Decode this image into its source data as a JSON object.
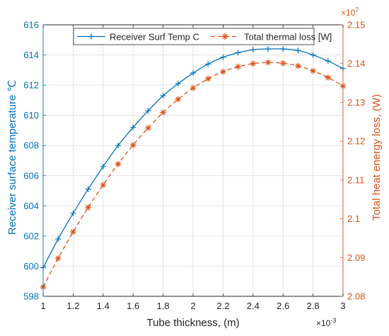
{
  "chart_data": {
    "type": "line",
    "title": "",
    "xlabel": "Tube thickness, (m)",
    "x_exponent_label": "×10",
    "x_exponent": "-3",
    "xlim": [
      1,
      3
    ],
    "xticks": [
      1,
      1.2,
      1.4,
      1.6,
      1.8,
      2,
      2.2,
      2.4,
      2.6,
      2.8,
      3
    ],
    "xtick_labels": [
      "1",
      "1.2",
      "1.4",
      "1.6",
      "1.8",
      "2",
      "2.2",
      "2.4",
      "2.6",
      "2.8",
      "3"
    ],
    "ylabel_left": "Receiver surface temperature ℃",
    "ylim_left": [
      598,
      616
    ],
    "yticks_left": [
      598,
      600,
      602,
      604,
      606,
      608,
      610,
      612,
      614,
      616
    ],
    "ytick_labels_left": [
      "598",
      "600",
      "602",
      "604",
      "606",
      "608",
      "610",
      "612",
      "614",
      "616"
    ],
    "ylabel_right": "Total heat energy loss, (W)",
    "y_right_exponent_label": "×10",
    "y_right_exponent": "7",
    "ylim_right": [
      2.08,
      2.15
    ],
    "yticks_right": [
      2.08,
      2.09,
      2.1,
      2.11,
      2.12,
      2.13,
      2.14,
      2.15
    ],
    "ytick_labels_right": [
      "2.08",
      "2.09",
      "2.1",
      "2.11",
      "2.12",
      "2.13",
      "2.14",
      "2.15"
    ],
    "grid": true,
    "legend_position": "top-center",
    "colors": {
      "left_axis": "#0072BD",
      "right_axis": "#D95319",
      "grid": "#dcdcdc",
      "frame": "#262626"
    },
    "x": [
      1,
      1.1,
      1.2,
      1.3,
      1.4,
      1.5,
      1.6,
      1.7,
      1.8,
      1.9,
      2,
      2.1,
      2.2,
      2.3,
      2.4,
      2.5,
      2.6,
      2.7,
      2.8,
      2.9,
      3
    ],
    "series": [
      {
        "name": "Receiver Surf Temp C",
        "axis": "left",
        "color": "#0072BD",
        "line_style": "solid",
        "marker": "plus",
        "values": [
          599.9,
          601.8,
          603.5,
          605.1,
          606.6,
          608.0,
          609.2,
          610.3,
          611.3,
          612.1,
          612.8,
          613.4,
          613.85,
          614.15,
          614.35,
          614.4,
          614.4,
          614.3,
          614.0,
          613.6,
          613.1
        ]
      },
      {
        "name": "Total thermal loss [W]",
        "axis": "right",
        "color": "#D95319",
        "line_style": "dashed",
        "marker": "asterisk",
        "values": [
          2.0824,
          2.0898,
          2.0966,
          2.1029,
          2.1087,
          2.1141,
          2.119,
          2.1234,
          2.1274,
          2.1308,
          2.1337,
          2.1361,
          2.1379,
          2.1392,
          2.14,
          2.1403,
          2.1401,
          2.1394,
          2.1381,
          2.1364,
          2.1342
        ]
      }
    ]
  }
}
